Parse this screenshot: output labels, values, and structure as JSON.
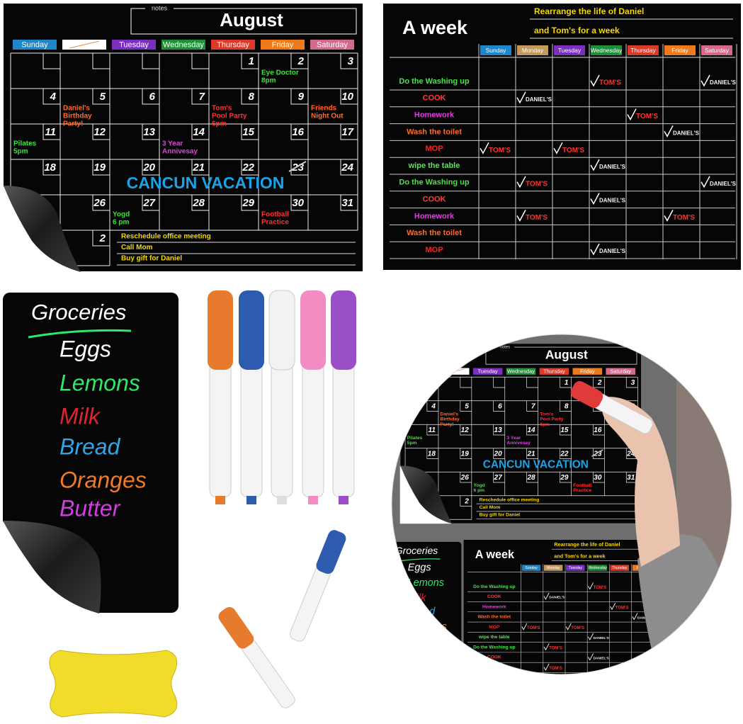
{
  "calendar": {
    "notes_label": "notes",
    "month": "August",
    "weekdays": [
      "Sunday",
      null,
      "Tuesday",
      "Wednesday",
      "Thursday",
      "Friday",
      "Saturday"
    ],
    "weekday_colors": [
      "#1f86c9",
      "#ffffff",
      "#7b2fbf",
      "#1f8f3a",
      "#d93a2a",
      "#ef7a1a",
      "#d46a8a"
    ],
    "weeks": [
      [
        null,
        null,
        null,
        null,
        1,
        2,
        3
      ],
      [
        4,
        5,
        6,
        7,
        8,
        9,
        10
      ],
      [
        11,
        12,
        13,
        14,
        15,
        16,
        17
      ],
      [
        18,
        19,
        20,
        21,
        22,
        23,
        24
      ],
      [
        null,
        26,
        27,
        28,
        29,
        30,
        31
      ],
      [
        null,
        2
      ]
    ],
    "events": [
      {
        "day": 2,
        "lines": [
          "Eye Doctor",
          "8pm"
        ],
        "color": "#3ee03e"
      },
      {
        "day": 5,
        "lines": [
          "Daniel's",
          "Birthday",
          "Party!"
        ],
        "color": "#ff6a2a"
      },
      {
        "day": 8,
        "lines": [
          "Tom's",
          "Pool Party",
          "6pm"
        ],
        "color": "#ff3030"
      },
      {
        "day": 10,
        "lines": [
          "Friends",
          "Night Out"
        ],
        "color": "#ff6a2a"
      },
      {
        "day": 11,
        "lines": [
          "Pilates",
          "5pm"
        ],
        "color": "#3ee03e"
      },
      {
        "day": 14,
        "lines": [
          "3 Year",
          "Annivesay"
        ],
        "color": "#e040e0"
      },
      {
        "day": 27,
        "lines": [
          "Yogd",
          "6 pm"
        ],
        "color": "#3ee03e"
      },
      {
        "day": 30,
        "lines": [
          "Football",
          "Practice"
        ],
        "color": "#ff3030"
      }
    ],
    "banner": "CANCUN VACATION",
    "notes": [
      "Reschedule office meeting",
      "Call Mom",
      "Buy gift for Daniel"
    ]
  },
  "week_chart": {
    "title": "A week",
    "subtitle": [
      "Rearrange the life of Daniel",
      "and Tom's for a week"
    ],
    "days": [
      "Sunday",
      "Monday",
      "Tuesday",
      "Wednesday",
      "Thursday",
      "Friday",
      "Saturday"
    ],
    "day_colors": [
      "#1f86c9",
      "#c39a5c",
      "#7b2fbf",
      "#1f8f3a",
      "#d93a2a",
      "#ef7a1a",
      "#d46a8a"
    ],
    "tasks": [
      {
        "name": "Do the Washing up",
        "color": "#4de04d"
      },
      {
        "name": "COOK",
        "color": "#ff3b3b"
      },
      {
        "name": "Homework",
        "color": "#e040e0"
      },
      {
        "name": "Wash the toilet",
        "color": "#ff6a2a"
      },
      {
        "name": "MOP",
        "color": "#ff2020"
      },
      {
        "name": "wipe the table",
        "color": "#5fe05f"
      },
      {
        "name": "Do the Washing up",
        "color": "#4de04d"
      },
      {
        "name": "COOK",
        "color": "#ff3b3b"
      },
      {
        "name": "Homework",
        "color": "#e040e0"
      },
      {
        "name": "Wash the toilet",
        "color": "#ff6a2a"
      },
      {
        "name": "MOP",
        "color": "#ff2020"
      }
    ],
    "checks": [
      {
        "task": 0,
        "day": 3,
        "label": "TOM'S",
        "color": "#ff3030"
      },
      {
        "task": 0,
        "day": 6,
        "label": "DANIEL'S",
        "color": "#f0f0f0"
      },
      {
        "task": 1,
        "day": 1,
        "label": "DANIEL'S",
        "color": "#f0f0f0"
      },
      {
        "task": 2,
        "day": 4,
        "label": "TOM'S",
        "color": "#ff3030"
      },
      {
        "task": 3,
        "day": 5,
        "label": "DANIEL'S",
        "color": "#f0f0f0"
      },
      {
        "task": 4,
        "day": 0,
        "label": "TOM'S",
        "color": "#ff3030"
      },
      {
        "task": 4,
        "day": 2,
        "label": "TOM'S",
        "color": "#ff3030"
      },
      {
        "task": 5,
        "day": 3,
        "label": "DANIEL'S",
        "color": "#f0f0f0"
      },
      {
        "task": 6,
        "day": 1,
        "label": "TOM'S",
        "color": "#ff3030"
      },
      {
        "task": 6,
        "day": 6,
        "label": "DANIEL'S",
        "color": "#f0f0f0"
      },
      {
        "task": 7,
        "day": 3,
        "label": "DANIEL'S",
        "color": "#f0f0f0"
      },
      {
        "task": 8,
        "day": 1,
        "label": "TOM'S",
        "color": "#ff3030"
      },
      {
        "task": 8,
        "day": 5,
        "label": "TOM'S",
        "color": "#ff3030"
      },
      {
        "task": 10,
        "day": 3,
        "label": "DANIEL'S",
        "color": "#f0f0f0"
      }
    ]
  },
  "groceries": {
    "title": "Groceries",
    "items": [
      {
        "name": "Eggs",
        "color": "#ffffff"
      },
      {
        "name": "Lemons",
        "color": "#2ee86a"
      },
      {
        "name": "Milk",
        "color": "#e0242e"
      },
      {
        "name": "Bread",
        "color": "#2fa6e8"
      },
      {
        "name": "Oranges",
        "color": "#f07a2a"
      },
      {
        "name": "Butter",
        "color": "#d040e0"
      }
    ]
  }
}
